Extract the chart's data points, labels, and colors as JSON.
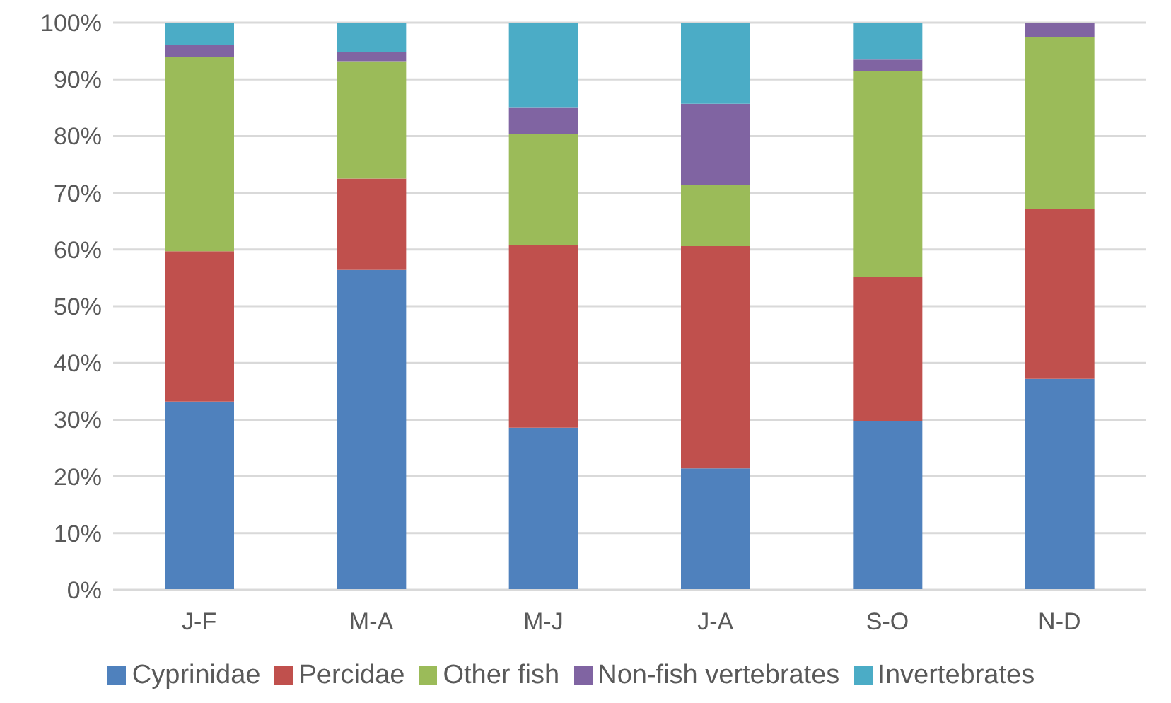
{
  "chart_data": {
    "type": "bar",
    "stacked": true,
    "categories": [
      "J-F",
      "M-A",
      "M-J",
      "J-A",
      "S-O",
      "N-D"
    ],
    "series": [
      {
        "name": "Cyprinidae",
        "color": "#4f81bd",
        "values": [
          33.2,
          56.4,
          28.6,
          21.4,
          29.8,
          37.2
        ]
      },
      {
        "name": "Percidae",
        "color": "#c0504d",
        "values": [
          26.5,
          16.1,
          32.2,
          39.2,
          25.4,
          30.0
        ]
      },
      {
        "name": "Other fish",
        "color": "#9bbb59",
        "values": [
          34.3,
          20.7,
          19.6,
          10.8,
          36.3,
          30.2
        ]
      },
      {
        "name": "Non-fish vertebrates",
        "color": "#8064a2",
        "values": [
          2.0,
          1.6,
          4.7,
          14.3,
          2.0,
          2.6
        ]
      },
      {
        "name": "Invertebrates",
        "color": "#4bacc6",
        "values": [
          4.0,
          5.2,
          14.9,
          14.3,
          6.5,
          0
        ]
      }
    ],
    "ylim": [
      0,
      100
    ],
    "yticks": [
      {
        "value": 0,
        "label": "0%"
      },
      {
        "value": 10,
        "label": "10%"
      },
      {
        "value": 20,
        "label": "20%"
      },
      {
        "value": 30,
        "label": "30%"
      },
      {
        "value": 40,
        "label": "40%"
      },
      {
        "value": 50,
        "label": "50%"
      },
      {
        "value": 60,
        "label": "60%"
      },
      {
        "value": 70,
        "label": "70%"
      },
      {
        "value": 80,
        "label": "80%"
      },
      {
        "value": 90,
        "label": "90%"
      },
      {
        "value": 100,
        "label": "100%"
      }
    ],
    "grid": "y",
    "legend": "bottom"
  }
}
